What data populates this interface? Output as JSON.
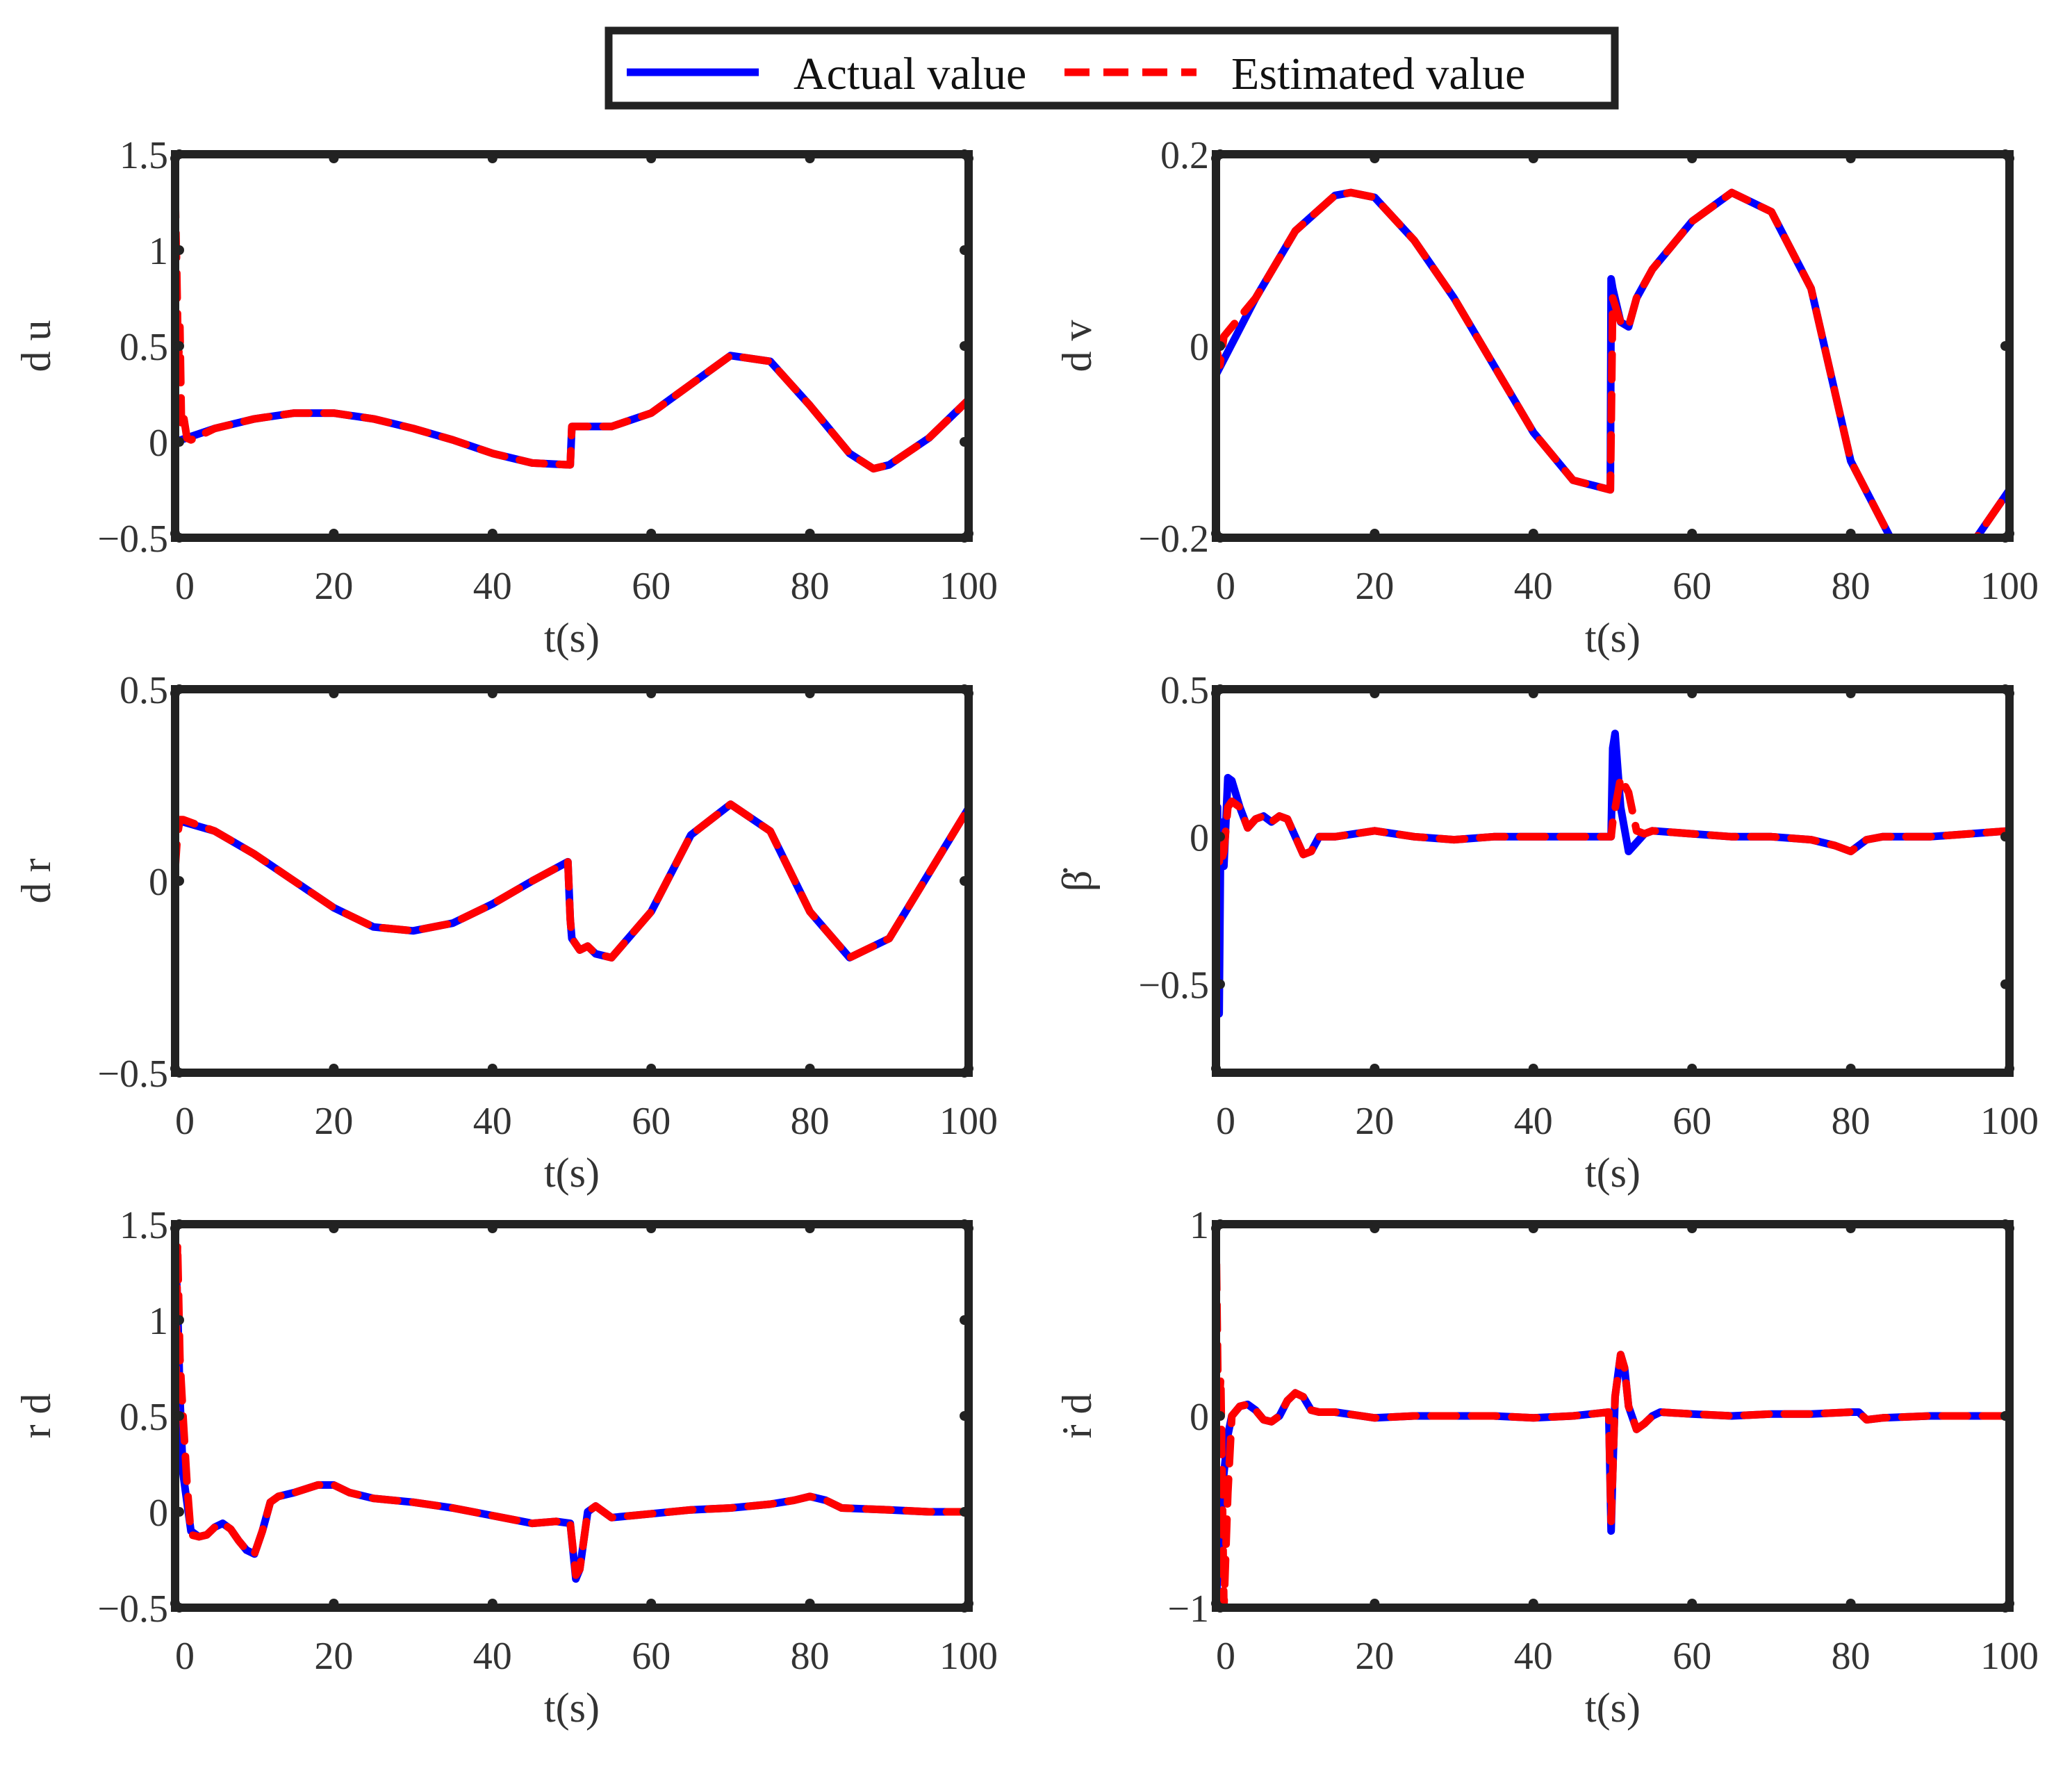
{
  "legend": {
    "entries": [
      {
        "label": "Actual value",
        "color": "#0000ff",
        "style": "solid"
      },
      {
        "label": "Estimated value",
        "color": "#ff0000",
        "style": "dashed"
      }
    ]
  },
  "colors": {
    "actual": "#0000ff",
    "estimated": "#ff0000",
    "frame": "#222222"
  },
  "chart_data": [
    {
      "type": "line",
      "ylabel": "d u",
      "xlabel": "t(s)",
      "xlim": [
        0,
        100
      ],
      "ylim": [
        -0.5,
        1.5
      ],
      "xticks": [
        "0",
        "20",
        "40",
        "60",
        "80",
        "100"
      ],
      "yticks": [
        "−0.5",
        "0",
        "0.5",
        "1",
        "1.5"
      ],
      "ytick_values": [
        -0.5,
        0,
        0.5,
        1,
        1.5
      ],
      "series": [
        {
          "name": "Actual value",
          "x": [
            0,
            5,
            10,
            15,
            20,
            25,
            30,
            35,
            40,
            45,
            49.8,
            50,
            55,
            60,
            65,
            70,
            75,
            80,
            85,
            88,
            90,
            95,
            100
          ],
          "y": [
            0,
            0.07,
            0.12,
            0.15,
            0.15,
            0.12,
            0.07,
            0.01,
            -0.06,
            -0.11,
            -0.12,
            0.08,
            0.08,
            0.15,
            0.3,
            0.45,
            0.42,
            0.19,
            -0.06,
            -0.14,
            -0.12,
            0.02,
            0.22
          ]
        },
        {
          "name": "Estimated value",
          "x": [
            0,
            0.2,
            0.4,
            0.6,
            0.8,
            1,
            1.5,
            2,
            5,
            10,
            15,
            20,
            25,
            30,
            35,
            40,
            45,
            49.8,
            50,
            55,
            60,
            65,
            70,
            75,
            80,
            85,
            88,
            90,
            95,
            100
          ],
          "y": [
            1.3,
            0.9,
            0.4,
            0.6,
            0.1,
            0.15,
            0.02,
            0.01,
            0.07,
            0.12,
            0.15,
            0.15,
            0.12,
            0.07,
            0.01,
            -0.06,
            -0.11,
            -0.12,
            0.08,
            0.08,
            0.15,
            0.3,
            0.45,
            0.42,
            0.19,
            -0.06,
            -0.14,
            -0.12,
            0.02,
            0.22
          ]
        }
      ]
    },
    {
      "type": "line",
      "ylabel": "d v",
      "xlabel": "t(s)",
      "xlim": [
        0,
        100
      ],
      "ylim": [
        -0.2,
        0.2
      ],
      "xticks": [
        "0",
        "20",
        "40",
        "60",
        "80",
        "100"
      ],
      "yticks": [
        "−0.2",
        "0",
        "0.2"
      ],
      "ytick_values": [
        -0.2,
        0,
        0.2
      ],
      "series": [
        {
          "name": "Actual value",
          "x": [
            0,
            5,
            10,
            15,
            17,
            20,
            25,
            30,
            35,
            40,
            45,
            49.7,
            49.8,
            50,
            51,
            52,
            53,
            55,
            60,
            65,
            70,
            75,
            80,
            85,
            90,
            95,
            100
          ],
          "y": [
            -0.03,
            0.05,
            0.12,
            0.157,
            0.16,
            0.155,
            0.11,
            0.05,
            -0.02,
            -0.09,
            -0.14,
            -0.15,
            0.07,
            0.06,
            0.025,
            0.02,
            0.05,
            0.08,
            0.13,
            0.16,
            0.14,
            0.06,
            -0.12,
            -0.2,
            -0.23,
            -0.21,
            -0.15
          ]
        },
        {
          "name": "Estimated value",
          "x": [
            0,
            0.5,
            1,
            5,
            10,
            15,
            17,
            20,
            25,
            30,
            35,
            40,
            45,
            49.7,
            49.8,
            50,
            51,
            52,
            53,
            55,
            60,
            65,
            70,
            75,
            80,
            85,
            90,
            95,
            100
          ],
          "y": [
            0,
            -0.02,
            0.01,
            0.05,
            0.12,
            0.157,
            0.16,
            0.155,
            0.11,
            0.05,
            -0.02,
            -0.09,
            -0.14,
            -0.15,
            -0.09,
            0.05,
            0.025,
            0.02,
            0.05,
            0.08,
            0.13,
            0.16,
            0.14,
            0.06,
            -0.12,
            -0.2,
            -0.23,
            -0.21,
            -0.15
          ]
        }
      ]
    },
    {
      "type": "line",
      "ylabel": "d r",
      "xlabel": "t(s)",
      "xlim": [
        0,
        100
      ],
      "ylim": [
        -0.5,
        0.5
      ],
      "xticks": [
        "0",
        "20",
        "40",
        "60",
        "80",
        "100"
      ],
      "yticks": [
        "−0.5",
        "0",
        "0.5"
      ],
      "ytick_values": [
        -0.5,
        0,
        0.5
      ],
      "series": [
        {
          "name": "Actual value",
          "x": [
            0,
            5,
            10,
            15,
            20,
            25,
            30,
            35,
            40,
            45,
            49.5,
            49.8,
            50,
            51,
            52,
            53,
            55,
            60,
            65,
            70,
            75,
            80,
            85,
            90,
            95,
            100
          ],
          "y": [
            0.16,
            0.13,
            0.07,
            0.0,
            -0.07,
            -0.12,
            -0.13,
            -0.11,
            -0.06,
            0.0,
            0.05,
            -0.1,
            -0.15,
            -0.18,
            -0.17,
            -0.19,
            -0.2,
            -0.08,
            0.12,
            0.2,
            0.13,
            -0.08,
            -0.2,
            -0.15,
            0.02,
            0.19
          ]
        },
        {
          "name": "Estimated value",
          "x": [
            0,
            0.3,
            0.6,
            1,
            5,
            10,
            15,
            20,
            25,
            30,
            35,
            40,
            45,
            49.5,
            49.8,
            50,
            51,
            52,
            53,
            55,
            60,
            65,
            70,
            75,
            80,
            85,
            90,
            95,
            100
          ],
          "y": [
            0.03,
            0.12,
            0.16,
            0.16,
            0.13,
            0.07,
            0.0,
            -0.07,
            -0.12,
            -0.13,
            -0.11,
            -0.06,
            0.0,
            0.05,
            -0.1,
            -0.15,
            -0.18,
            -0.17,
            -0.19,
            -0.2,
            -0.08,
            0.12,
            0.2,
            0.13,
            -0.08,
            -0.2,
            -0.15,
            0.02,
            0.19
          ]
        }
      ]
    },
    {
      "type": "line",
      "ylabel": "β̇",
      "xlabel": "t(s)",
      "xlim": [
        0,
        100
      ],
      "ylim": [
        -0.8,
        0.5
      ],
      "xticks": [
        "0",
        "20",
        "40",
        "60",
        "80",
        "100"
      ],
      "yticks": [
        "−0.5",
        "0",
        "0.5"
      ],
      "ytick_values": [
        -0.5,
        0,
        0.5
      ],
      "series": [
        {
          "name": "Actual value",
          "x": [
            0,
            0.2,
            0.4,
            0.6,
            1,
            1.5,
            2,
            3,
            4,
            5,
            6,
            7,
            8,
            9,
            10,
            11,
            12,
            13,
            15,
            20,
            25,
            30,
            35,
            40,
            45,
            49.8,
            50,
            50.3,
            51,
            52,
            53,
            54,
            55,
            60,
            65,
            70,
            75,
            78,
            80,
            81,
            82,
            84,
            90,
            95,
            100
          ],
          "y": [
            -0.7,
            0.1,
            -0.6,
            0.05,
            -0.1,
            0.2,
            0.19,
            0.1,
            0.03,
            0.06,
            0.07,
            0.05,
            0.07,
            0.06,
            0.0,
            -0.06,
            -0.05,
            0.0,
            0.0,
            0.02,
            0.0,
            -0.01,
            0.0,
            0.0,
            0.0,
            0.0,
            0.3,
            0.35,
            0.1,
            -0.05,
            -0.02,
            0.01,
            0.02,
            0.01,
            0.0,
            0.0,
            -0.01,
            -0.03,
            -0.05,
            -0.03,
            -0.01,
            0.0,
            0.0,
            0.01,
            0.02
          ]
        },
        {
          "name": "Estimated value",
          "x": [
            0,
            0.5,
            1,
            1.5,
            2,
            3,
            4,
            5,
            6,
            7,
            8,
            9,
            10,
            11,
            12,
            13,
            15,
            20,
            25,
            30,
            35,
            40,
            45,
            49.8,
            50,
            51,
            52,
            53,
            54,
            55,
            60,
            65,
            70,
            75,
            78,
            80,
            81,
            82,
            84,
            90,
            95,
            100
          ],
          "y": [
            0.0,
            -0.1,
            -0.05,
            0.1,
            0.12,
            0.1,
            0.03,
            0.06,
            0.07,
            0.05,
            0.07,
            0.06,
            0.0,
            -0.06,
            -0.05,
            0.0,
            0.0,
            0.02,
            0.0,
            -0.01,
            0.0,
            0.0,
            0.0,
            0.0,
            0.05,
            0.2,
            0.15,
            0.02,
            0.01,
            0.02,
            0.01,
            0.0,
            0.0,
            -0.01,
            -0.03,
            -0.05,
            -0.03,
            -0.01,
            0.0,
            0.0,
            0.01,
            0.02
          ]
        }
      ]
    },
    {
      "type": "line",
      "ylabel": "r d",
      "xlabel": "t(s)",
      "xlim": [
        0,
        100
      ],
      "ylim": [
        -0.5,
        1.5
      ],
      "xticks": [
        "0",
        "20",
        "40",
        "60",
        "80",
        "100"
      ],
      "yticks": [
        "−0.5",
        "0",
        "0.5",
        "1",
        "1.5"
      ],
      "ytick_values": [
        -0.5,
        0,
        0.5,
        1,
        1.5
      ],
      "series": [
        {
          "name": "Actual value",
          "x": [
            0,
            0.3,
            0.6,
            1,
            1.5,
            2,
            3,
            4,
            5,
            6,
            7,
            8,
            9,
            10,
            11,
            12,
            13,
            15,
            18,
            20,
            22,
            25,
            30,
            35,
            40,
            45,
            48,
            49.8,
            50.5,
            51,
            52,
            53,
            54,
            55,
            60,
            65,
            70,
            75,
            78,
            80,
            82,
            84,
            90,
            95,
            100
          ],
          "y": [
            1.4,
            1.1,
            0.6,
            0.2,
            0.05,
            -0.1,
            -0.13,
            -0.12,
            -0.08,
            -0.06,
            -0.09,
            -0.15,
            -0.2,
            -0.22,
            -0.1,
            0.05,
            0.08,
            0.1,
            0.14,
            0.14,
            0.1,
            0.07,
            0.05,
            0.02,
            -0.02,
            -0.06,
            -0.05,
            -0.06,
            -0.35,
            -0.3,
            0.0,
            0.03,
            0.0,
            -0.03,
            -0.01,
            0.01,
            0.02,
            0.04,
            0.06,
            0.08,
            0.06,
            0.02,
            0.01,
            0.0,
            0.0
          ]
        },
        {
          "name": "Estimated value",
          "x": [
            0,
            0.3,
            0.6,
            1,
            1.5,
            2,
            3,
            4,
            5,
            6,
            7,
            8,
            9,
            10,
            11,
            12,
            13,
            15,
            18,
            20,
            22,
            25,
            30,
            35,
            40,
            45,
            48,
            49.8,
            50.5,
            51,
            52,
            53,
            54,
            55,
            60,
            65,
            70,
            75,
            78,
            80,
            82,
            84,
            90,
            95,
            100
          ],
          "y": [
            0.2,
            1.4,
            0.8,
            0.5,
            0.15,
            -0.12,
            -0.13,
            -0.12,
            -0.08,
            -0.06,
            -0.09,
            -0.15,
            -0.2,
            -0.22,
            -0.1,
            0.05,
            0.08,
            0.1,
            0.14,
            0.14,
            0.1,
            0.07,
            0.05,
            0.02,
            -0.02,
            -0.06,
            -0.05,
            -0.06,
            -0.33,
            -0.3,
            0.0,
            0.03,
            0.0,
            -0.03,
            -0.01,
            0.01,
            0.02,
            0.04,
            0.06,
            0.08,
            0.06,
            0.02,
            0.01,
            0.0,
            0.0
          ]
        }
      ]
    },
    {
      "type": "line",
      "ylabel": "ṙ d",
      "xlabel": "t(s)",
      "xlim": [
        0,
        100
      ],
      "ylim": [
        -1,
        1
      ],
      "xticks": [
        "0",
        "20",
        "40",
        "60",
        "80",
        "100"
      ],
      "yticks": [
        "−1",
        "0",
        "1"
      ],
      "ytick_values": [
        -1,
        0,
        1
      ],
      "series": [
        {
          "name": "Actual value",
          "x": [
            0,
            0.5,
            1,
            1.5,
            2,
            3,
            4,
            5,
            6,
            7,
            8,
            9,
            10,
            11,
            12,
            13,
            15,
            20,
            25,
            30,
            35,
            40,
            45,
            49.5,
            49.8,
            50,
            50.3,
            51,
            51.5,
            52,
            53,
            54,
            55,
            56,
            60,
            65,
            70,
            75,
            80,
            81,
            82,
            84,
            90,
            95,
            100
          ],
          "y": [
            -1.0,
            -0.6,
            -0.3,
            -0.1,
            0.0,
            0.05,
            0.06,
            0.03,
            -0.02,
            -0.03,
            0.0,
            0.08,
            0.12,
            0.1,
            0.03,
            0.02,
            0.02,
            -0.01,
            0.0,
            0.0,
            0.0,
            -0.01,
            0.0,
            0.02,
            -0.6,
            -0.3,
            0.1,
            0.32,
            0.25,
            0.05,
            -0.07,
            -0.04,
            0.0,
            0.02,
            0.01,
            0.0,
            0.01,
            0.01,
            0.02,
            0.02,
            -0.02,
            -0.01,
            0.0,
            0.0,
            0.0
          ]
        },
        {
          "name": "Estimated value",
          "x": [
            0,
            0.3,
            0.6,
            1,
            1.5,
            2,
            3,
            4,
            5,
            6,
            7,
            8,
            9,
            10,
            11,
            12,
            13,
            15,
            20,
            25,
            30,
            35,
            40,
            45,
            49.5,
            49.8,
            50,
            50.3,
            51,
            51.5,
            52,
            53,
            54,
            55,
            56,
            60,
            65,
            70,
            75,
            80,
            81,
            82,
            84,
            90,
            95,
            100
          ],
          "y": [
            1.0,
            0.0,
            0.2,
            -1.0,
            -0.4,
            0.0,
            0.05,
            0.06,
            0.03,
            -0.02,
            -0.03,
            0.0,
            0.08,
            0.12,
            0.1,
            0.03,
            0.02,
            0.02,
            -0.01,
            0.0,
            0.0,
            0.0,
            -0.01,
            0.0,
            0.02,
            -0.55,
            -0.3,
            0.1,
            0.32,
            0.25,
            0.05,
            -0.07,
            -0.04,
            0.0,
            0.02,
            0.01,
            0.0,
            0.01,
            0.01,
            0.02,
            0.02,
            -0.02,
            -0.01,
            0.0,
            0.0,
            0.0
          ]
        }
      ]
    }
  ]
}
